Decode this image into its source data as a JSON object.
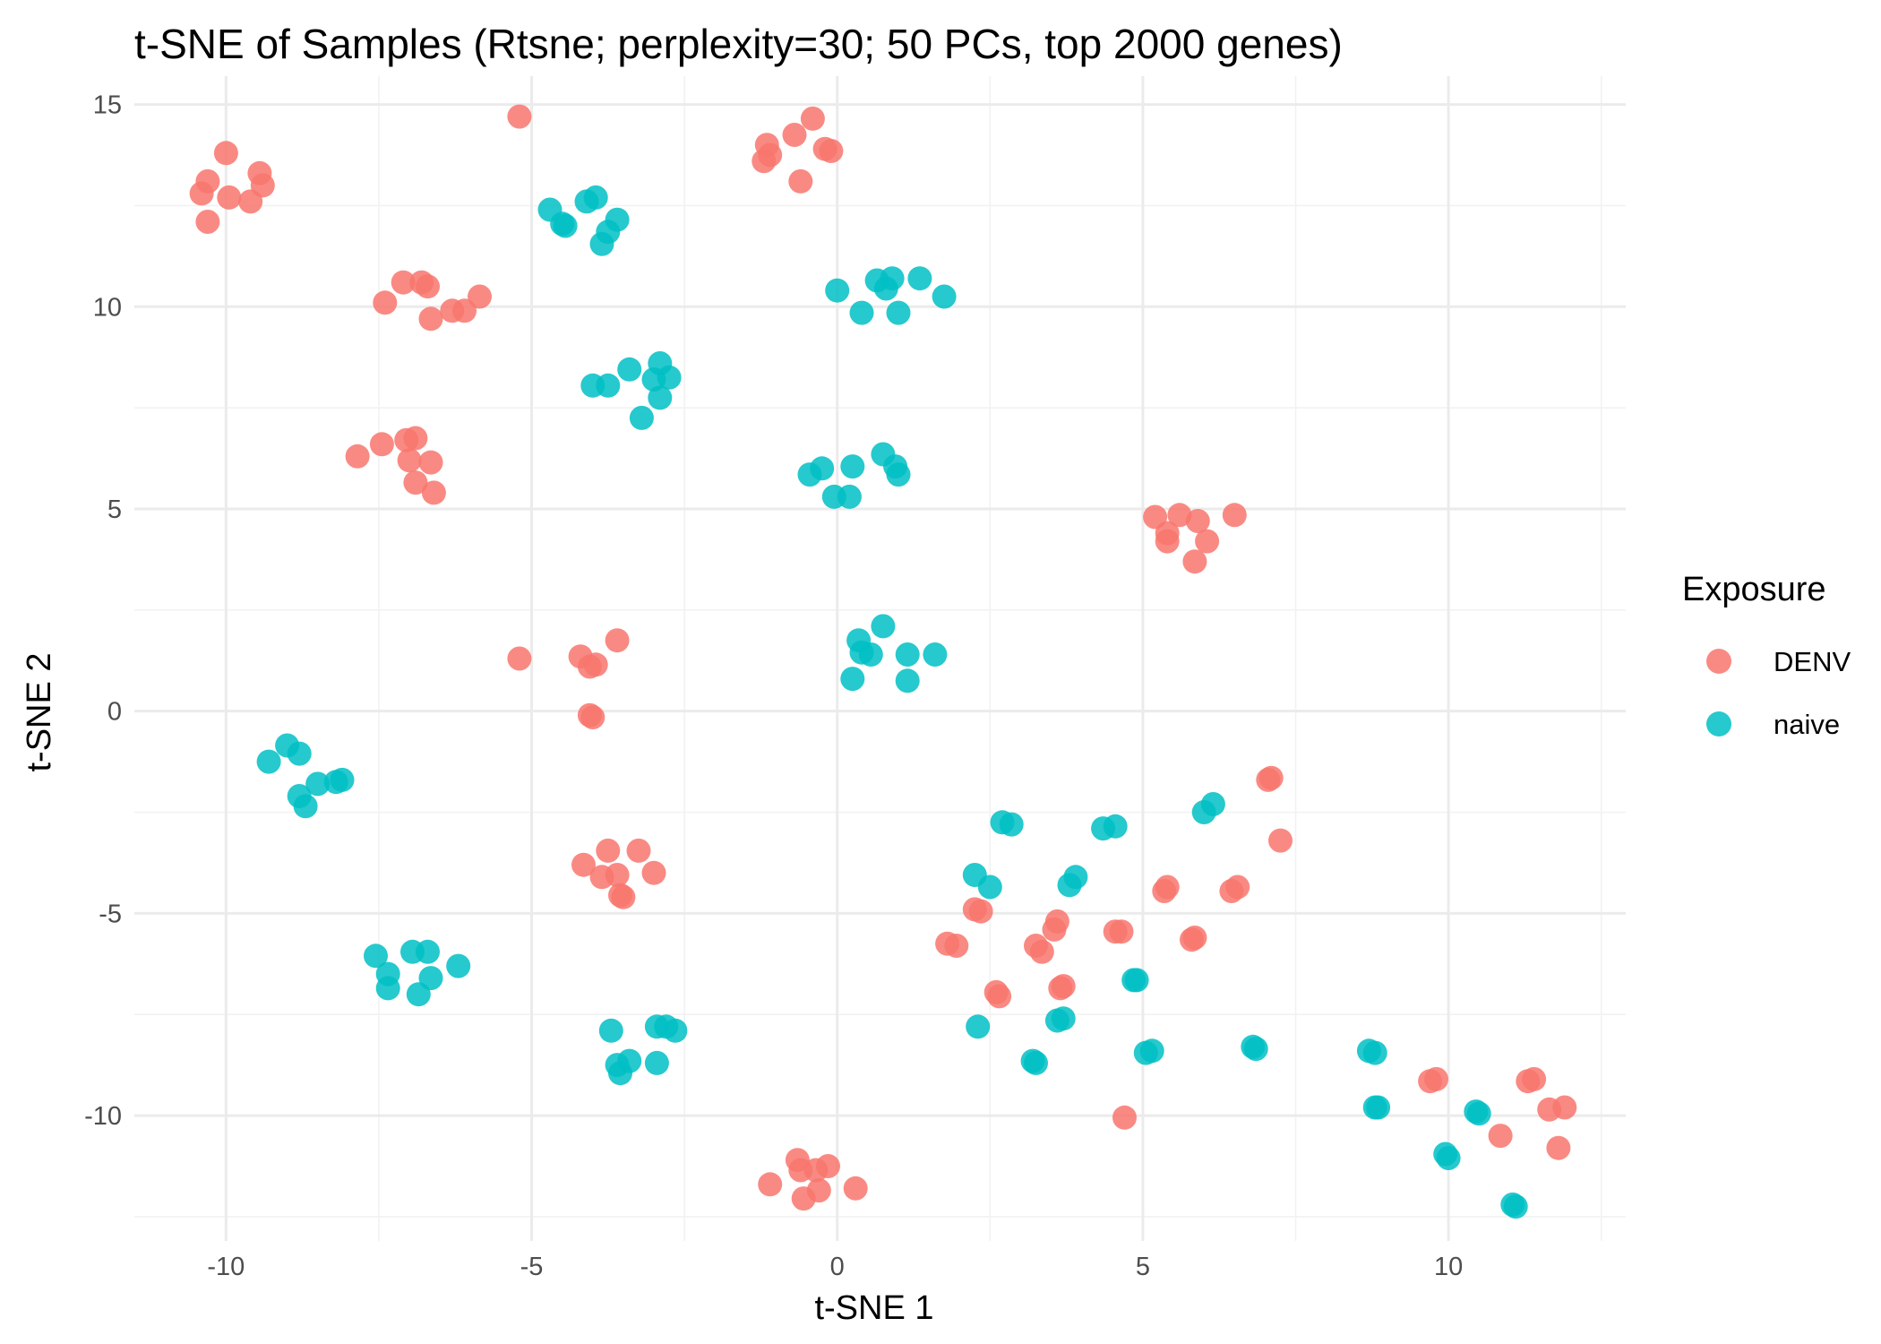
{
  "chart_data": {
    "type": "scatter",
    "title": "t-SNE of Samples (Rtsne; perplexity=30; 50 PCs, top 2000 genes)",
    "xlabel": "t-SNE 1",
    "ylabel": "t-SNE 2",
    "xlim": [
      -11.5,
      12.9
    ],
    "ylim": [
      -13.1,
      15.7
    ],
    "x_ticks": [
      -10,
      -5,
      0,
      5,
      10
    ],
    "x_tick_labels": [
      "-10",
      "-5",
      "0",
      "5",
      "10"
    ],
    "y_ticks": [
      -10,
      -5,
      0,
      5,
      10,
      15
    ],
    "y_tick_labels": [
      "-10",
      "-5",
      "0",
      "5",
      "10",
      "15"
    ],
    "grid": true,
    "legend": {
      "title": "Exposure",
      "position": "right"
    },
    "series": [
      {
        "name": "DENV",
        "color": "#F8766D",
        "points": [
          [
            -10.4,
            12.8
          ],
          [
            -10.3,
            13.1
          ],
          [
            -10.0,
            13.8
          ],
          [
            -9.95,
            12.7
          ],
          [
            -9.6,
            12.6
          ],
          [
            -9.45,
            13.3
          ],
          [
            -9.4,
            13.0
          ],
          [
            -10.3,
            12.1
          ],
          [
            -5.2,
            14.7
          ],
          [
            -7.4,
            10.1
          ],
          [
            -7.1,
            10.6
          ],
          [
            -6.8,
            10.6
          ],
          [
            -6.7,
            10.5
          ],
          [
            -6.65,
            9.7
          ],
          [
            -6.3,
            9.9
          ],
          [
            -6.1,
            9.9
          ],
          [
            -5.85,
            10.25
          ],
          [
            -7.85,
            6.3
          ],
          [
            -7.45,
            6.6
          ],
          [
            -7.05,
            6.7
          ],
          [
            -6.9,
            6.75
          ],
          [
            -7.0,
            6.2
          ],
          [
            -6.65,
            6.15
          ],
          [
            -6.9,
            5.65
          ],
          [
            -6.6,
            5.4
          ],
          [
            -1.2,
            13.6
          ],
          [
            -1.15,
            14.0
          ],
          [
            -1.1,
            13.75
          ],
          [
            -0.7,
            14.25
          ],
          [
            -0.4,
            14.65
          ],
          [
            -0.6,
            13.1
          ],
          [
            -0.2,
            13.9
          ],
          [
            -0.1,
            13.85
          ],
          [
            5.2,
            4.8
          ],
          [
            5.4,
            4.4
          ],
          [
            5.4,
            4.2
          ],
          [
            5.6,
            4.85
          ],
          [
            5.9,
            4.7
          ],
          [
            6.05,
            4.2
          ],
          [
            5.85,
            3.7
          ],
          [
            6.5,
            4.85
          ],
          [
            -5.2,
            1.3
          ],
          [
            -4.2,
            1.35
          ],
          [
            -4.05,
            1.1
          ],
          [
            -3.95,
            1.15
          ],
          [
            -3.6,
            1.75
          ],
          [
            -4.05,
            -0.1
          ],
          [
            -4.0,
            -0.15
          ],
          [
            -4.15,
            -3.8
          ],
          [
            -3.75,
            -3.45
          ],
          [
            -3.85,
            -4.1
          ],
          [
            -3.6,
            -4.05
          ],
          [
            -3.5,
            -4.6
          ],
          [
            -3.55,
            -4.55
          ],
          [
            -3.25,
            -3.45
          ],
          [
            -3.0,
            -4.0
          ],
          [
            -1.1,
            -11.7
          ],
          [
            -0.65,
            -11.1
          ],
          [
            -0.6,
            -11.35
          ],
          [
            -0.55,
            -12.05
          ],
          [
            -0.35,
            -11.35
          ],
          [
            -0.3,
            -11.85
          ],
          [
            -0.15,
            -11.25
          ],
          [
            0.3,
            -11.8
          ],
          [
            1.8,
            -5.75
          ],
          [
            1.95,
            -5.8
          ],
          [
            2.25,
            -4.9
          ],
          [
            2.35,
            -4.95
          ],
          [
            2.6,
            -6.95
          ],
          [
            2.65,
            -7.05
          ],
          [
            3.25,
            -5.8
          ],
          [
            3.35,
            -5.95
          ],
          [
            3.55,
            -5.4
          ],
          [
            3.6,
            -5.2
          ],
          [
            3.65,
            -6.85
          ],
          [
            3.7,
            -6.8
          ],
          [
            4.55,
            -5.45
          ],
          [
            4.65,
            -5.45
          ],
          [
            4.7,
            -10.05
          ],
          [
            5.35,
            -4.45
          ],
          [
            5.4,
            -4.35
          ],
          [
            5.8,
            -5.65
          ],
          [
            5.85,
            -5.6
          ],
          [
            6.45,
            -4.45
          ],
          [
            6.55,
            -4.35
          ],
          [
            7.05,
            -1.7
          ],
          [
            7.1,
            -1.65
          ],
          [
            7.25,
            -3.2
          ],
          [
            9.7,
            -9.15
          ],
          [
            9.8,
            -9.1
          ],
          [
            10.85,
            -10.5
          ],
          [
            11.3,
            -9.15
          ],
          [
            11.4,
            -9.1
          ],
          [
            11.65,
            -9.85
          ],
          [
            11.8,
            -10.8
          ],
          [
            11.9,
            -9.8
          ]
        ]
      },
      {
        "name": "naive",
        "color": "#00BFC4",
        "points": [
          [
            -4.7,
            12.4
          ],
          [
            -4.5,
            12.05
          ],
          [
            -4.45,
            12.0
          ],
          [
            -4.1,
            12.6
          ],
          [
            -3.95,
            12.7
          ],
          [
            -3.85,
            11.55
          ],
          [
            -3.75,
            11.85
          ],
          [
            -3.6,
            12.15
          ],
          [
            -4.0,
            8.05
          ],
          [
            -3.75,
            8.05
          ],
          [
            -3.4,
            8.45
          ],
          [
            -3.2,
            7.25
          ],
          [
            -3.0,
            8.2
          ],
          [
            -2.9,
            8.6
          ],
          [
            -2.9,
            7.75
          ],
          [
            -2.75,
            8.25
          ],
          [
            0.0,
            10.4
          ],
          [
            0.4,
            9.85
          ],
          [
            0.65,
            10.65
          ],
          [
            0.8,
            10.45
          ],
          [
            0.9,
            10.7
          ],
          [
            1.0,
            9.85
          ],
          [
            1.35,
            10.7
          ],
          [
            1.75,
            10.25
          ],
          [
            -0.45,
            5.85
          ],
          [
            -0.25,
            6.0
          ],
          [
            -0.05,
            5.3
          ],
          [
            0.2,
            5.3
          ],
          [
            0.25,
            6.05
          ],
          [
            0.75,
            6.35
          ],
          [
            0.95,
            6.05
          ],
          [
            1.0,
            5.85
          ],
          [
            0.25,
            0.8
          ],
          [
            0.35,
            1.75
          ],
          [
            0.4,
            1.45
          ],
          [
            0.55,
            1.4
          ],
          [
            0.75,
            2.1
          ],
          [
            1.15,
            1.4
          ],
          [
            1.15,
            0.75
          ],
          [
            1.6,
            1.4
          ],
          [
            -9.3,
            -1.25
          ],
          [
            -9.0,
            -0.85
          ],
          [
            -8.8,
            -1.05
          ],
          [
            -8.8,
            -2.1
          ],
          [
            -8.7,
            -2.35
          ],
          [
            -8.5,
            -1.8
          ],
          [
            -8.2,
            -1.75
          ],
          [
            -8.1,
            -1.7
          ],
          [
            -7.55,
            -6.05
          ],
          [
            -7.35,
            -6.5
          ],
          [
            -7.35,
            -6.85
          ],
          [
            -6.95,
            -5.95
          ],
          [
            -6.85,
            -7.0
          ],
          [
            -6.7,
            -5.95
          ],
          [
            -6.65,
            -6.6
          ],
          [
            -6.2,
            -6.3
          ],
          [
            -3.7,
            -7.9
          ],
          [
            -3.6,
            -8.75
          ],
          [
            -3.55,
            -8.95
          ],
          [
            -3.4,
            -8.65
          ],
          [
            -2.95,
            -7.8
          ],
          [
            -2.95,
            -8.7
          ],
          [
            -2.8,
            -7.8
          ],
          [
            -2.65,
            -7.9
          ],
          [
            2.25,
            -4.05
          ],
          [
            2.5,
            -4.35
          ],
          [
            2.3,
            -7.8
          ],
          [
            2.7,
            -2.75
          ],
          [
            2.85,
            -2.8
          ],
          [
            3.2,
            -8.65
          ],
          [
            3.25,
            -8.7
          ],
          [
            3.6,
            -7.65
          ],
          [
            3.7,
            -7.6
          ],
          [
            3.8,
            -4.3
          ],
          [
            3.9,
            -4.1
          ],
          [
            4.35,
            -2.9
          ],
          [
            4.55,
            -2.85
          ],
          [
            4.85,
            -6.65
          ],
          [
            4.9,
            -6.65
          ],
          [
            5.05,
            -8.45
          ],
          [
            5.15,
            -8.4
          ],
          [
            6.0,
            -2.5
          ],
          [
            6.15,
            -2.3
          ],
          [
            6.8,
            -8.3
          ],
          [
            6.85,
            -8.35
          ],
          [
            8.7,
            -8.4
          ],
          [
            8.8,
            -8.45
          ],
          [
            8.8,
            -9.8
          ],
          [
            8.85,
            -9.8
          ],
          [
            9.95,
            -10.95
          ],
          [
            10.0,
            -11.05
          ],
          [
            10.45,
            -9.9
          ],
          [
            10.5,
            -9.95
          ],
          [
            11.05,
            -12.2
          ],
          [
            11.1,
            -12.25
          ]
        ]
      }
    ]
  }
}
